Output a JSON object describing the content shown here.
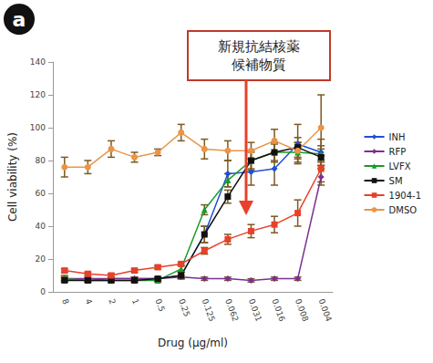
{
  "chart_data": {
    "type": "line",
    "title": "a",
    "x_label": "Drug (μg/ml)",
    "y_label": "Cell viability (%)",
    "annotation": "新規抗結核薬\n候補物質",
    "categories": [
      "8",
      "4",
      "2",
      "1",
      "0.5",
      "0.25",
      "0.125",
      "0.062",
      "0.031",
      "0.016",
      "0.008",
      "0.004"
    ],
    "ylim": [
      0,
      140
    ],
    "yticks": [
      0,
      20,
      40,
      60,
      80,
      100,
      120,
      140
    ],
    "grid": false,
    "legend": "right",
    "series": [
      {
        "name": "INH",
        "color": "#1f4fd8",
        "marker": "diamond",
        "values": [
          8,
          7,
          8,
          8,
          8,
          10,
          35,
          72,
          73,
          75,
          90,
          85
        ],
        "errors": [
          2,
          1,
          1,
          1,
          1,
          2,
          5,
          8,
          8,
          10,
          12,
          8
        ]
      },
      {
        "name": "RFP",
        "color": "#7b2f8e",
        "marker": "diamond",
        "values": [
          8,
          8,
          8,
          8,
          8,
          9,
          8,
          8,
          7,
          8,
          8,
          70
        ],
        "errors": [
          1,
          1,
          1,
          1,
          1,
          1,
          1,
          1,
          1,
          1,
          1,
          5
        ]
      },
      {
        "name": "LVFX",
        "color": "#1a9a2a",
        "marker": "triangle",
        "values": [
          8,
          7,
          7,
          7,
          7,
          14,
          50,
          68,
          80,
          85,
          85,
          84
        ],
        "errors": [
          1,
          1,
          1,
          1,
          1,
          2,
          3,
          4,
          5,
          5,
          6,
          5
        ]
      },
      {
        "name": "SM",
        "color": "#111111",
        "marker": "square",
        "values": [
          7,
          7,
          7,
          7,
          8,
          10,
          35,
          58,
          80,
          85,
          88,
          82
        ],
        "errors": [
          1,
          1,
          1,
          1,
          1,
          2,
          5,
          4,
          6,
          6,
          6,
          5
        ]
      },
      {
        "name": "1904-1",
        "color": "#e8402a",
        "marker": "square",
        "values": [
          13,
          11,
          10,
          13,
          15,
          17,
          25,
          32,
          37,
          41,
          48,
          75
        ],
        "errors": [
          1,
          1,
          1,
          1,
          1,
          1,
          2,
          3,
          4,
          5,
          8,
          8
        ]
      },
      {
        "name": "DMSO",
        "color": "#e8954a",
        "marker": "circle",
        "values": [
          76,
          76,
          87,
          82,
          85,
          97,
          87,
          86,
          86,
          92,
          86,
          100
        ],
        "errors": [
          6,
          4,
          5,
          3,
          2,
          5,
          6,
          6,
          5,
          7,
          5,
          20
        ]
      }
    ]
  }
}
